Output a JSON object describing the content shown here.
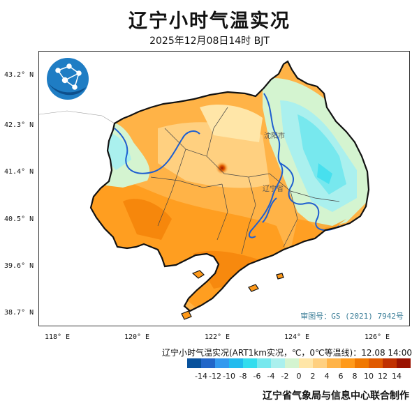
{
  "title": "辽宁小时气温实况",
  "subtitle": "2025年12月08日14时 BJT",
  "map": {
    "lat_labels": [
      "43.2° N",
      "42.3° N",
      "41.4° N",
      "40.5° N",
      "39.6° N",
      "38.7° N"
    ],
    "lon_labels": [
      "118° E",
      "120° E",
      "122° E",
      "124° E",
      "126° E"
    ],
    "cities": [
      "沈阳市",
      "辽宁省"
    ],
    "review_number": "审图号：GS (2021) 7942号",
    "logo": "globe-network-logo-icon"
  },
  "legend": {
    "title": "辽宁小时气温实况(ART1km实况，℃，0℃等温线)：12.08 14:00",
    "labels": [
      "-14",
      "-12",
      "-10",
      "-8",
      "-6",
      "-4",
      "-2",
      "0",
      "2",
      "4",
      "6",
      "8",
      "10",
      "12",
      "14"
    ],
    "colors": [
      "#08519c",
      "#2166c8",
      "#3399ee",
      "#22bbee",
      "#33ddee",
      "#77e8ee",
      "#aaf0ee",
      "#d4f4d0",
      "#ffe6a8",
      "#ffd080",
      "#ffb347",
      "#ff9a1a",
      "#f07800",
      "#e05a00",
      "#c03000",
      "#9a1200"
    ]
  },
  "footer": "辽宁省气象局与信息中心联合制作"
}
